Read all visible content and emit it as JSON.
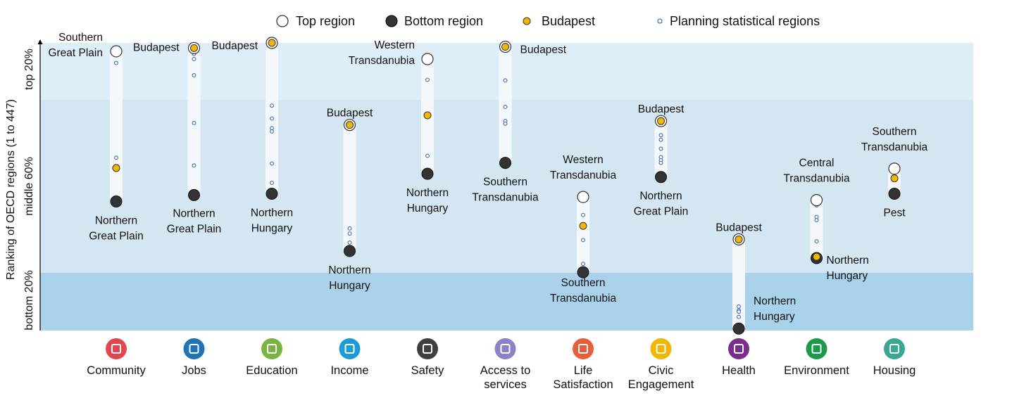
{
  "chart_data": {
    "type": "scatter",
    "y_axis": {
      "label": "Ranking of OECD regions (1 to 447)",
      "bands": [
        "top 20%",
        "middle 60%",
        "bottom 20%"
      ],
      "range": [
        447,
        1
      ]
    },
    "legend": [
      {
        "key": "top",
        "label": "Top region"
      },
      {
        "key": "bottom",
        "label": "Bottom region"
      },
      {
        "key": "budapest",
        "label": "Budapest"
      },
      {
        "key": "planning",
        "label": "Planning statistical regions"
      }
    ],
    "colors": {
      "top_fill": "#ffffff",
      "bottom_fill": "#333333",
      "budapest_fill": "#f2b705",
      "planning_stroke": "#4a78b5",
      "band_top": "#deeef8",
      "band_middle": "#d3e6f2",
      "band_bottom": "#a9d2ea",
      "range_bar": "#f4f8fb"
    },
    "categories": [
      {
        "name": "Community",
        "icon": "community-icon",
        "icon_color": "#e2474f",
        "top": {
          "rank": 14,
          "label": "Southern\nGreat Plain"
        },
        "bottom": {
          "rank": 247,
          "label": "Northern\nGreat Plain"
        },
        "budapest": 195,
        "planning": [
          32,
          179
        ]
      },
      {
        "name": "Jobs",
        "icon": "jobs-icon",
        "icon_color": "#1f74b8",
        "top": {
          "rank": 9,
          "label": "Budapest"
        },
        "bottom": {
          "rank": 237,
          "label": "Northern\nGreat Plain"
        },
        "budapest": 9,
        "planning": [
          18,
          26,
          51,
          125,
          191
        ]
      },
      {
        "name": "Education",
        "icon": "education-icon",
        "icon_color": "#7bb342",
        "top": {
          "rank": 1,
          "label": "Budapest"
        },
        "bottom": {
          "rank": 235,
          "label": "Northern\nHungary"
        },
        "budapest": 1,
        "planning": [
          98,
          118,
          133,
          138,
          188,
          218
        ]
      },
      {
        "name": "Income",
        "icon": "income-icon",
        "icon_color": "#1d9bd7",
        "top": {
          "rank": 128,
          "label": "Budapest"
        },
        "bottom": {
          "rank": 324,
          "label": "Northern\nHungary"
        },
        "budapest": 128,
        "planning": [
          289,
          297,
          311
        ]
      },
      {
        "name": "Safety",
        "icon": "safety-icon",
        "icon_color": "#3f3f3f",
        "top": {
          "rank": 26,
          "label": "Western\nTransdanubia"
        },
        "bottom": {
          "rank": 204,
          "label": "Northern\nHungary"
        },
        "budapest": 113,
        "planning": [
          58,
          176
        ]
      },
      {
        "name": "Access to\nservices",
        "icon": "access-to-services-icon",
        "icon_color": "#8d80c4",
        "top": {
          "rank": 7,
          "label": "Budapest"
        },
        "bottom": {
          "rank": 187,
          "label": "Southern\nTransdanubia"
        },
        "budapest": 7,
        "planning": [
          59,
          100,
          122,
          126
        ]
      },
      {
        "name": "Life\nSatisfaction",
        "icon": "life-satisfaction-icon",
        "icon_color": "#e85d3b",
        "top": {
          "rank": 240,
          "label": "Western\nTransdanubia"
        },
        "bottom": {
          "rank": 357,
          "label": "Southern\nTransdanubia"
        },
        "budapest": 285,
        "planning": [
          268,
          307,
          344
        ]
      },
      {
        "name": "Civic\nEngagement",
        "icon": "civic-engagement-icon",
        "icon_color": "#f2b705",
        "top": {
          "rank": 122,
          "label": "Budapest"
        },
        "bottom": {
          "rank": 209,
          "label": "Northern\nGreat Plain"
        },
        "budapest": 122,
        "planning": [
          144,
          151,
          165,
          178,
          183,
          187
        ]
      },
      {
        "name": "Health",
        "icon": "health-icon",
        "icon_color": "#7b2d8e",
        "top": {
          "rank": 306,
          "label": "Budapest"
        },
        "bottom": {
          "rank": 444,
          "label": "Northern\nHungary"
        },
        "budapest": 306,
        "planning": [
          410,
          416,
          418,
          426
        ]
      },
      {
        "name": "Environment",
        "icon": "environment-icon",
        "icon_color": "#1f9a4c",
        "top": {
          "rank": 245,
          "label": "Central\nTransdanubia"
        },
        "bottom": {
          "rank": 335,
          "label": "Northern\nHungary"
        },
        "budapest": 333,
        "planning": [
          253,
          271,
          276,
          309
        ]
      },
      {
        "name": "Housing",
        "icon": "housing-icon",
        "icon_color": "#3aa891",
        "top": {
          "rank": 196,
          "label": "Southern\nTransdanubia"
        },
        "bottom": {
          "rank": 235,
          "label": "Pest"
        },
        "budapest": 211,
        "planning": [
          232
        ]
      }
    ]
  }
}
